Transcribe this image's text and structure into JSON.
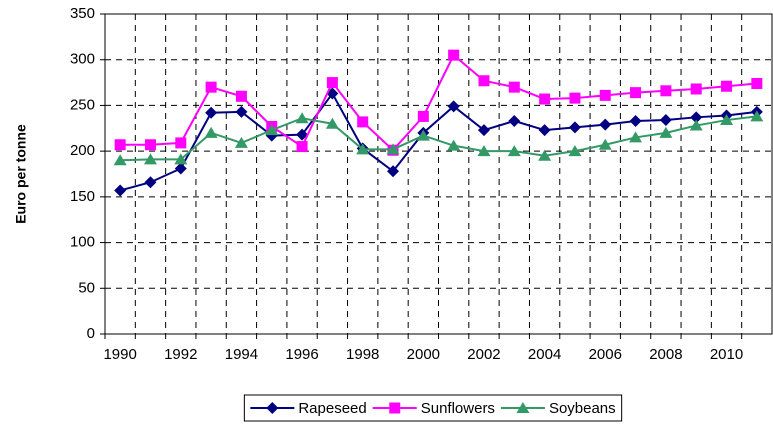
{
  "chart_data": {
    "type": "line",
    "y_label": "Euro per tonne",
    "categories": [
      "1990",
      null,
      "1992",
      null,
      "1994",
      null,
      "1996",
      null,
      "1998",
      null,
      "2000",
      null,
      "2002",
      null,
      "2004",
      null,
      "2006",
      null,
      "2008",
      null,
      "2010",
      null
    ],
    "series": [
      {
        "name": "Rapeseed",
        "color": "#000080",
        "marker": "diamond",
        "values": [
          157,
          166,
          181,
          242,
          243,
          217,
          218,
          263,
          203,
          178,
          220,
          249,
          223,
          233,
          223,
          226,
          229,
          233,
          234,
          237,
          239,
          243
        ]
      },
      {
        "name": "Sunflowers",
        "color": "#ff00ff",
        "marker": "square",
        "values": [
          207,
          207,
          209,
          270,
          260,
          227,
          205,
          275,
          232,
          201,
          238,
          305,
          277,
          270,
          257,
          258,
          261,
          264,
          266,
          268,
          271,
          274
        ]
      },
      {
        "name": "Soybeans",
        "color": "#339966",
        "marker": "triangle",
        "values": [
          190,
          191,
          191,
          220,
          209,
          223,
          236,
          230,
          202,
          202,
          217,
          206,
          200,
          200,
          195,
          200,
          207,
          215,
          220,
          228,
          234,
          238
        ]
      }
    ],
    "ylim": [
      0,
      350
    ],
    "yticks": [
      0,
      50,
      100,
      150,
      200,
      250,
      300,
      350
    ],
    "grid": true,
    "legend": "bottom"
  }
}
